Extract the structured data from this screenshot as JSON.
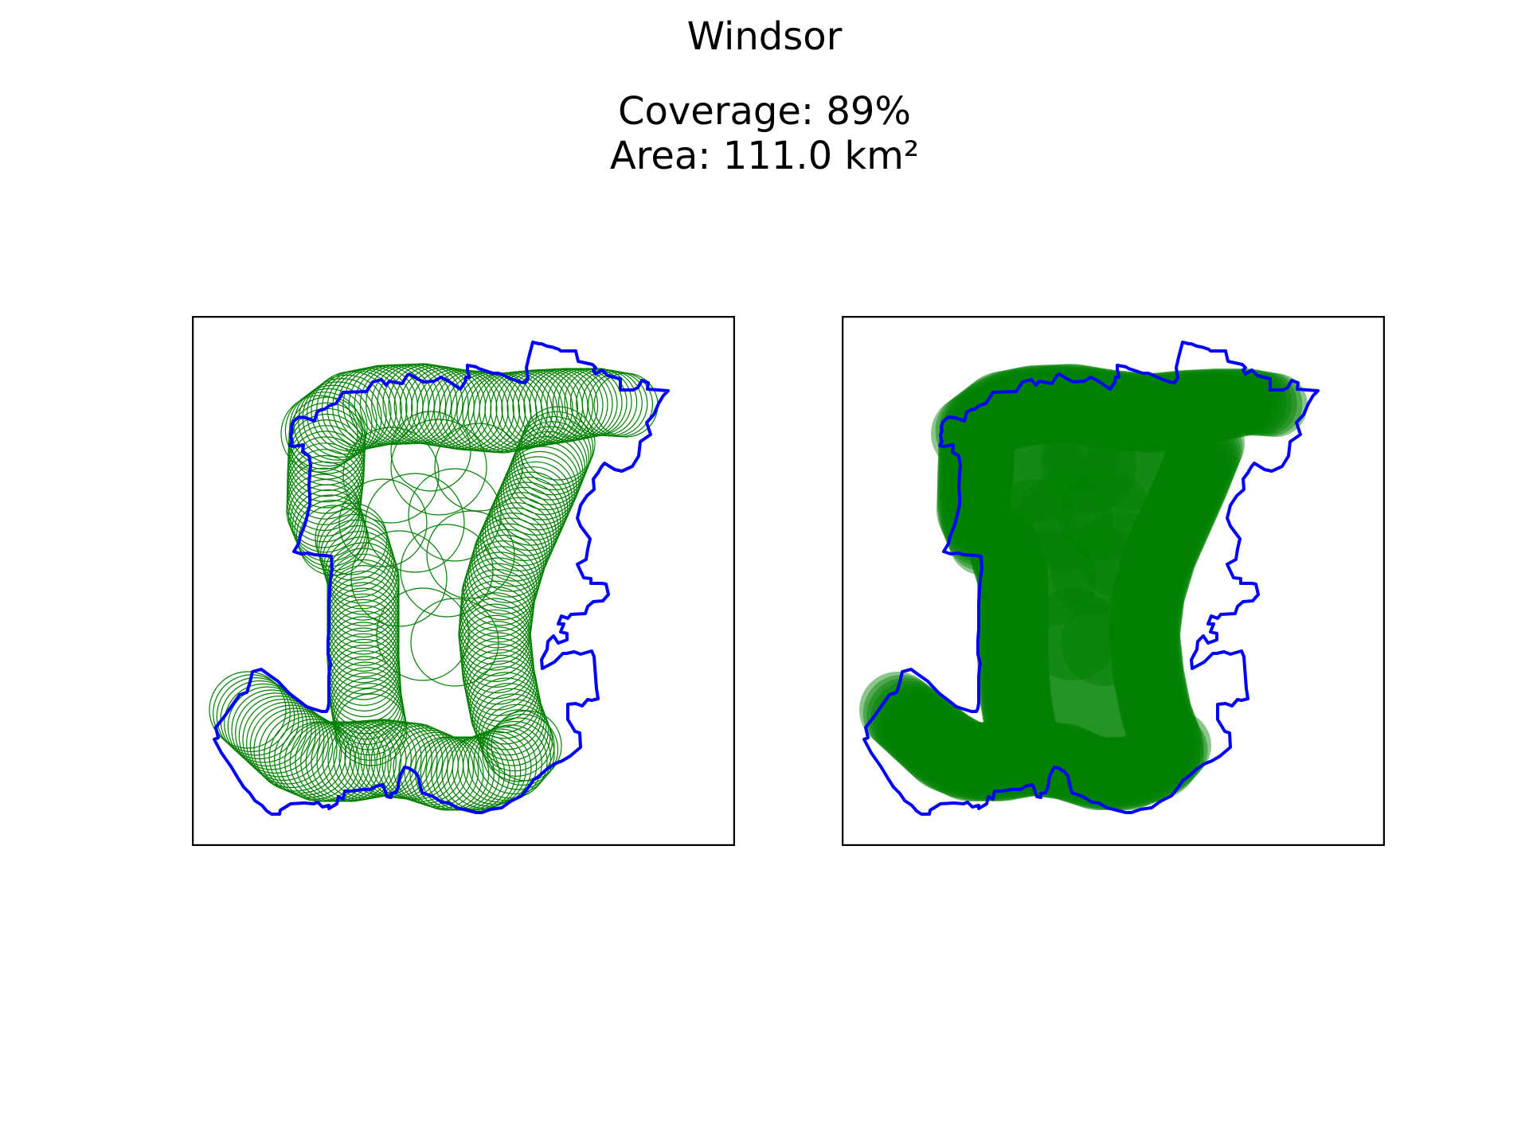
{
  "figure": {
    "title": "Windsor",
    "coverage_text": "Coverage: 89%",
    "area_text": "Area: 111.0 km²"
  },
  "colors": {
    "boundary": "#0000ff",
    "coverage": "#008000",
    "frame": "#000000",
    "background": "#ffffff"
  },
  "panels": [
    {
      "name": "coverage-circles-outline",
      "style": "outline"
    },
    {
      "name": "coverage-circles-filled",
      "style": "filled"
    }
  ]
}
